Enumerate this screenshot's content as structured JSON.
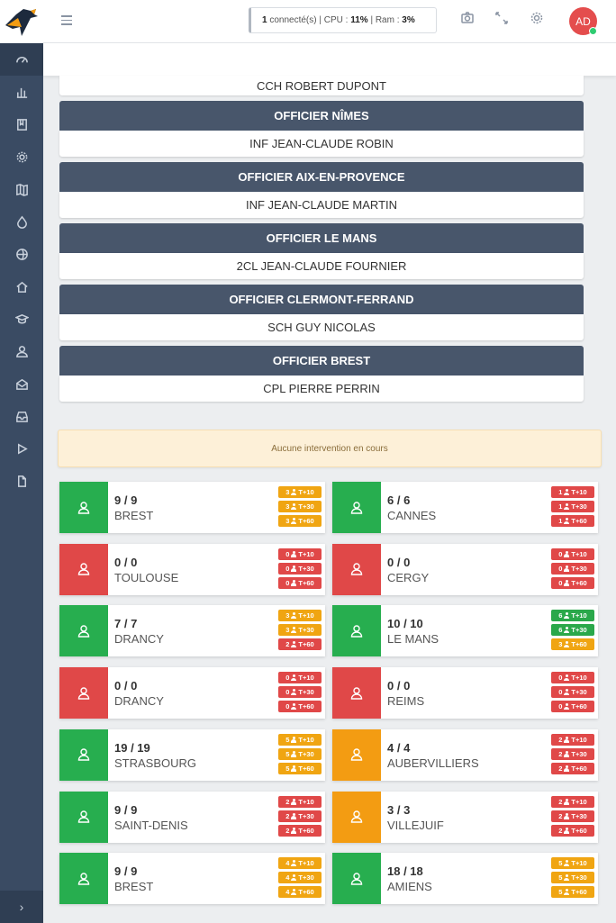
{
  "header": {
    "status_count": "1",
    "status_connected": "connecté(s)",
    "status_cpu_label": "| CPU :",
    "status_cpu_value": "11%",
    "status_ram_label": "| Ram :",
    "status_ram_value": "3%",
    "avatar": "AD"
  },
  "officers": {
    "top_name": "CCH ROBERT DUPONT",
    "blocks": [
      {
        "title": "OFFICIER NÎMES",
        "name": "INF JEAN-CLAUDE ROBIN"
      },
      {
        "title": "OFFICIER AIX-EN-PROVENCE",
        "name": "INF JEAN-CLAUDE MARTIN"
      },
      {
        "title": "OFFICIER LE MANS",
        "name": "2CL JEAN-CLAUDE FOURNIER"
      },
      {
        "title": "OFFICIER CLERMONT-FERRAND",
        "name": "SCH GUY NICOLAS"
      },
      {
        "title": "OFFICIER BREST",
        "name": "CPL PIERRE PERRIN"
      }
    ]
  },
  "alert": "Aucune intervention en cours",
  "colors": {
    "green": "#27ae4f",
    "red": "#e04848",
    "orange": "#f39c12",
    "badge_orange": "#f0a512",
    "badge_red": "#e04848",
    "badge_green": "#2aa84a"
  },
  "cards": [
    {
      "count": "9 / 9",
      "city": "BREST",
      "status": "green",
      "badges": [
        {
          "n": "3",
          "t": "T+10",
          "c": "orange"
        },
        {
          "n": "3",
          "t": "T+30",
          "c": "orange"
        },
        {
          "n": "3",
          "t": "T+60",
          "c": "orange"
        }
      ]
    },
    {
      "count": "6 / 6",
      "city": "CANNES",
      "status": "green",
      "badges": [
        {
          "n": "1",
          "t": "T+10",
          "c": "red"
        },
        {
          "n": "1",
          "t": "T+30",
          "c": "red"
        },
        {
          "n": "1",
          "t": "T+60",
          "c": "red"
        }
      ]
    },
    {
      "count": "0 / 0",
      "city": "TOULOUSE",
      "status": "red",
      "badges": [
        {
          "n": "0",
          "t": "T+10",
          "c": "red"
        },
        {
          "n": "0",
          "t": "T+30",
          "c": "red"
        },
        {
          "n": "0",
          "t": "T+60",
          "c": "red"
        }
      ]
    },
    {
      "count": "0 / 0",
      "city": "CERGY",
      "status": "red",
      "badges": [
        {
          "n": "0",
          "t": "T+10",
          "c": "red"
        },
        {
          "n": "0",
          "t": "T+30",
          "c": "red"
        },
        {
          "n": "0",
          "t": "T+60",
          "c": "red"
        }
      ]
    },
    {
      "count": "7 / 7",
      "city": "DRANCY",
      "status": "green",
      "badges": [
        {
          "n": "3",
          "t": "T+10",
          "c": "orange"
        },
        {
          "n": "3",
          "t": "T+30",
          "c": "orange"
        },
        {
          "n": "2",
          "t": "T+60",
          "c": "red"
        }
      ]
    },
    {
      "count": "10 / 10",
      "city": "LE MANS",
      "status": "green",
      "badges": [
        {
          "n": "6",
          "t": "T+10",
          "c": "green"
        },
        {
          "n": "6",
          "t": "T+30",
          "c": "green"
        },
        {
          "n": "3",
          "t": "T+60",
          "c": "orange"
        }
      ]
    },
    {
      "count": "0 / 0",
      "city": "DRANCY",
      "status": "red",
      "badges": [
        {
          "n": "0",
          "t": "T+10",
          "c": "red"
        },
        {
          "n": "0",
          "t": "T+30",
          "c": "red"
        },
        {
          "n": "0",
          "t": "T+60",
          "c": "red"
        }
      ]
    },
    {
      "count": "0 / 0",
      "city": "REIMS",
      "status": "red",
      "badges": [
        {
          "n": "0",
          "t": "T+10",
          "c": "red"
        },
        {
          "n": "0",
          "t": "T+30",
          "c": "red"
        },
        {
          "n": "0",
          "t": "T+60",
          "c": "red"
        }
      ]
    },
    {
      "count": "19 / 19",
      "city": "STRASBOURG",
      "status": "green",
      "badges": [
        {
          "n": "5",
          "t": "T+10",
          "c": "orange"
        },
        {
          "n": "5",
          "t": "T+30",
          "c": "orange"
        },
        {
          "n": "5",
          "t": "T+60",
          "c": "orange"
        }
      ]
    },
    {
      "count": "4 / 4",
      "city": "AUBERVILLIERS",
      "status": "orange",
      "badges": [
        {
          "n": "2",
          "t": "T+10",
          "c": "red"
        },
        {
          "n": "2",
          "t": "T+30",
          "c": "red"
        },
        {
          "n": "2",
          "t": "T+60",
          "c": "red"
        }
      ]
    },
    {
      "count": "9 / 9",
      "city": "SAINT-DENIS",
      "status": "green",
      "badges": [
        {
          "n": "2",
          "t": "T+10",
          "c": "red"
        },
        {
          "n": "2",
          "t": "T+30",
          "c": "red"
        },
        {
          "n": "2",
          "t": "T+60",
          "c": "red"
        }
      ]
    },
    {
      "count": "3 / 3",
      "city": "VILLEJUIF",
      "status": "orange",
      "badges": [
        {
          "n": "2",
          "t": "T+10",
          "c": "red"
        },
        {
          "n": "2",
          "t": "T+30",
          "c": "red"
        },
        {
          "n": "2",
          "t": "T+60",
          "c": "red"
        }
      ]
    },
    {
      "count": "9 / 9",
      "city": "BREST",
      "status": "green",
      "badges": [
        {
          "n": "4",
          "t": "T+10",
          "c": "orange"
        },
        {
          "n": "4",
          "t": "T+30",
          "c": "orange"
        },
        {
          "n": "4",
          "t": "T+60",
          "c": "orange"
        }
      ]
    },
    {
      "count": "18 / 18",
      "city": "AMIENS",
      "status": "green",
      "badges": [
        {
          "n": "5",
          "t": "T+10",
          "c": "orange"
        },
        {
          "n": "5",
          "t": "T+30",
          "c": "orange"
        },
        {
          "n": "5",
          "t": "T+60",
          "c": "orange"
        }
      ]
    }
  ]
}
